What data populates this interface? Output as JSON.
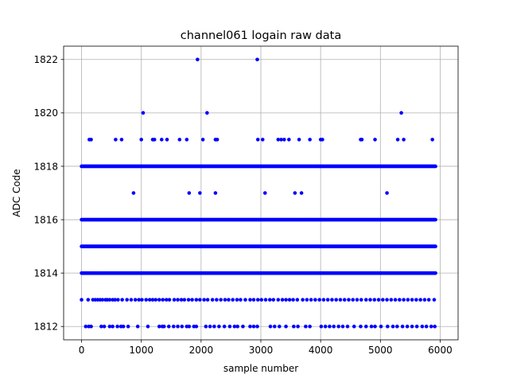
{
  "chart_data": {
    "type": "scatter",
    "title": "channel061 logain raw data",
    "xlabel": "sample number",
    "ylabel": "ADC Code",
    "xlim": [
      -300,
      6300
    ],
    "ylim": [
      1811.5,
      1822.5
    ],
    "x_ticks": [
      0,
      1000,
      2000,
      3000,
      4000,
      5000,
      6000
    ],
    "y_ticks": [
      1812,
      1814,
      1816,
      1818,
      1820,
      1822
    ],
    "grid": true,
    "n_samples": 5925,
    "series": [
      {
        "color": "#0000ff",
        "marker": "dot",
        "dense_levels": [
          1814,
          1815,
          1816,
          1818
        ],
        "sparse_levels": [
          {
            "y": 1813,
            "x": [
              0,
              110,
              190,
              230,
              270,
              310,
              350,
              400,
              430,
              470,
              520,
              560,
              610,
              680,
              760,
              830,
              900,
              960,
              1010,
              1080,
              1140,
              1190,
              1240,
              1300,
              1360,
              1420,
              1470,
              1550,
              1610,
              1670,
              1720,
              1790,
              1850,
              1920,
              1980,
              2050,
              2110,
              2190,
              2260,
              2330,
              2400,
              2460,
              2530,
              2600,
              2660,
              2740,
              2820,
              2880,
              2950,
              3010,
              3080,
              3150,
              3210,
              3290,
              3360,
              3420,
              3480,
              3540,
              3610,
              3700,
              3770,
              3840,
              3910,
              3980,
              4050,
              4120,
              4190,
              4260,
              4330,
              4400,
              4470,
              4540,
              4610,
              4680,
              4760,
              4830,
              4900,
              4970,
              5040,
              5110,
              5180,
              5250,
              5320,
              5390,
              5460,
              5530,
              5600,
              5670,
              5740,
              5810,
              5900
            ]
          },
          {
            "y": 1812,
            "x": [
              70,
              120,
              160,
              330,
              380,
              470,
              520,
              600,
              660,
              700,
              780,
              940,
              1110,
              1300,
              1350,
              1380,
              1460,
              1540,
              1610,
              1680,
              1760,
              1800,
              1880,
              1920,
              2080,
              2150,
              2220,
              2300,
              2390,
              2480,
              2560,
              2610,
              2700,
              2820,
              2880,
              2940,
              3160,
              3230,
              3310,
              3420,
              3550,
              3620,
              3750,
              3820,
              4010,
              4080,
              4150,
              4220,
              4300,
              4370,
              4450,
              4560,
              4670,
              4760,
              4850,
              4910,
              5010,
              5120,
              5210,
              5280,
              5370,
              5450,
              5530,
              5610,
              5700,
              5770,
              5850,
              5910
            ]
          },
          {
            "y": 1817,
            "x": [
              870,
              1800,
              1980,
              2240,
              3070,
              3570,
              3680,
              5110
            ]
          },
          {
            "y": 1819,
            "x": [
              130,
              160,
              570,
              670,
              1000,
              1190,
              1220,
              1340,
              1430,
              1640,
              1760,
              2030,
              2240,
              2270,
              2950,
              3030,
              3290,
              3340,
              3390,
              3470,
              3640,
              3820,
              4000,
              4030,
              4670,
              4690,
              4910,
              5290,
              5390,
              5870
            ]
          },
          {
            "y": 1820,
            "x": [
              1030,
              2100,
              5350
            ]
          },
          {
            "y": 1822,
            "x": [
              1940,
              2940
            ]
          }
        ]
      }
    ]
  }
}
